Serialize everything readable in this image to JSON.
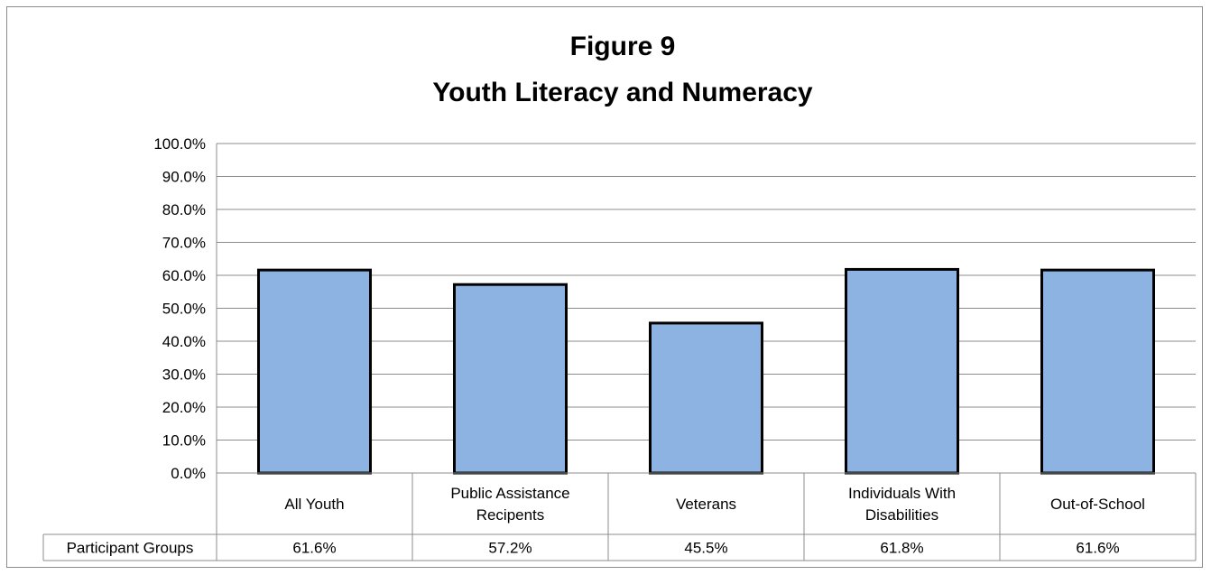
{
  "chart_data": {
    "type": "bar",
    "title": [
      "Figure 9",
      "Youth Literacy and Numeracy"
    ],
    "categories": [
      [
        "All Youth"
      ],
      [
        "Public Assistance",
        "Recipents"
      ],
      [
        "Veterans"
      ],
      [
        "Individuals With",
        "Disabilities"
      ],
      [
        "Out-of-School"
      ]
    ],
    "series": [
      {
        "name": "Participant Groups",
        "values": [
          61.6,
          57.2,
          45.5,
          61.8,
          61.6
        ],
        "labels": [
          "61.6%",
          "57.2%",
          "45.5%",
          "61.8%",
          "61.6%"
        ]
      }
    ],
    "ylim": [
      0,
      100
    ],
    "yticks": [
      "0.0%",
      "10.0%",
      "20.0%",
      "30.0%",
      "40.0%",
      "50.0%",
      "60.0%",
      "70.0%",
      "80.0%",
      "90.0%",
      "100.0%"
    ],
    "grid": true,
    "data_table": true,
    "colors": {
      "bar_fill": "#8db3e2",
      "bar_stroke": "#000000",
      "grid": "#8c8c8c"
    }
  }
}
